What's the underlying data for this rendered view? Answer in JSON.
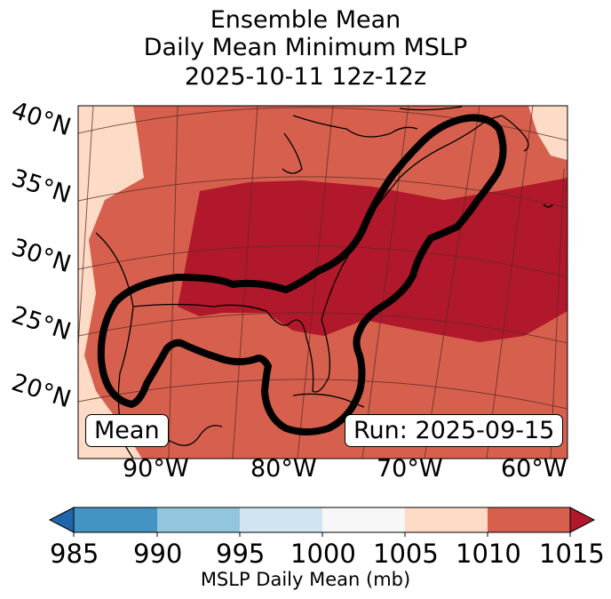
{
  "title": {
    "line1": "Ensemble Mean",
    "line2": "Daily Mean Minimum MSLP",
    "line3": "2025-10-11 12z-12z"
  },
  "map": {
    "lat_labels": [
      "40°N",
      "35°N",
      "30°N",
      "25°N",
      "20°N"
    ],
    "lon_labels": [
      "90°W",
      "80°W",
      "70°W",
      "60°W"
    ],
    "box_left": "Mean",
    "box_right": "Run: 2025-09-15"
  },
  "colorbar": {
    "title": "MSLP Daily Mean (mb)",
    "tick_labels": [
      "985",
      "990",
      "995",
      "1000",
      "1005",
      "1010",
      "1015"
    ],
    "colors": [
      "#4393c3",
      "#92c5de",
      "#d1e5f0",
      "#f7f7f7",
      "#fddbc7",
      "#d6604d",
      "#b2182b",
      "#2166ac",
      "#67001f"
    ]
  },
  "legend_values": {
    "low_extend_color": "#2166ac",
    "high_extend_color": "#67001f"
  }
}
